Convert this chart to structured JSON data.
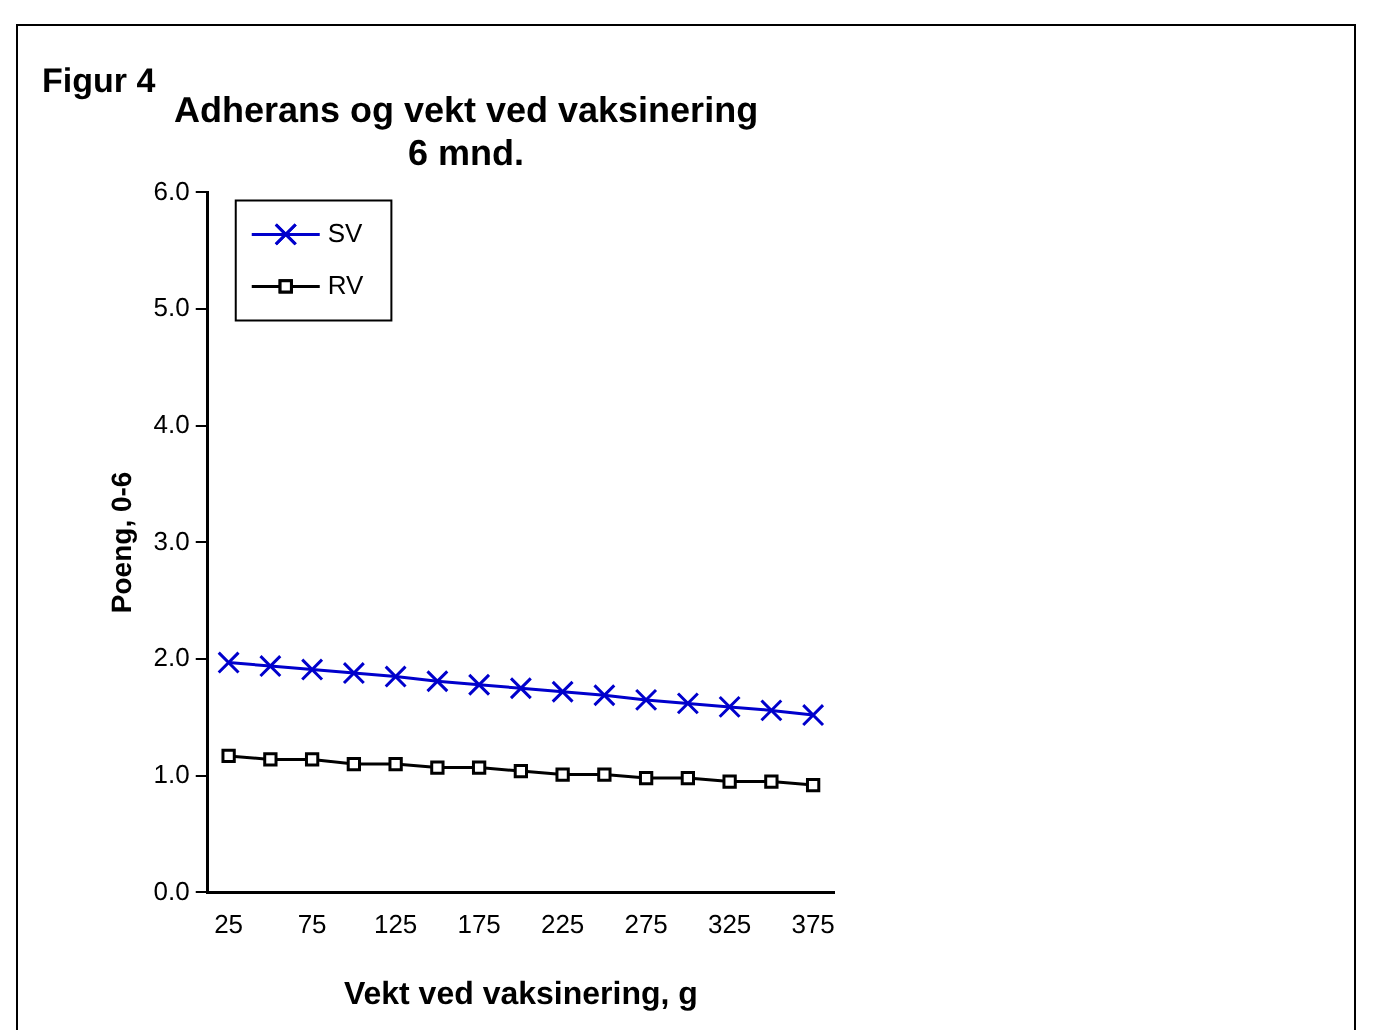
{
  "chart_data": {
    "type": "line",
    "title": [
      "Adherans og vekt ved vaksinering",
      "6 mnd."
    ],
    "annotations": [
      "Figur 4"
    ],
    "xlabel": "Vekt ved vaksinering, g",
    "ylabel": "Poeng, 0-6",
    "categories": [
      "25",
      null,
      "75",
      null,
      "125",
      null,
      "175",
      null,
      "225",
      null,
      "275",
      null,
      "325",
      null,
      "375"
    ],
    "series": [
      {
        "name": "SV",
        "color": "#0000cc",
        "marker": "cross",
        "values": [
          1.97,
          1.94,
          1.91,
          1.88,
          1.85,
          1.81,
          1.78,
          1.75,
          1.72,
          1.69,
          1.65,
          1.62,
          1.59,
          1.56,
          1.52
        ]
      },
      {
        "name": "RV",
        "color": "#000000",
        "marker": "square",
        "values": [
          1.17,
          1.14,
          1.14,
          1.1,
          1.1,
          1.07,
          1.07,
          1.04,
          1.01,
          1.01,
          0.98,
          0.98,
          0.95,
          0.95,
          0.92
        ]
      }
    ],
    "ylim": [
      0,
      6
    ],
    "yticks": [
      {
        "value": 0,
        "label": "0.0"
      },
      {
        "value": 1,
        "label": "1.0"
      },
      {
        "value": 2,
        "label": "2.0"
      },
      {
        "value": 3,
        "label": "3.0"
      },
      {
        "value": 4,
        "label": "4.0"
      },
      {
        "value": 5,
        "label": "5.0"
      },
      {
        "value": 6,
        "label": "6.0"
      }
    ],
    "grid": false,
    "legend": "top left",
    "line_style": "solid"
  }
}
